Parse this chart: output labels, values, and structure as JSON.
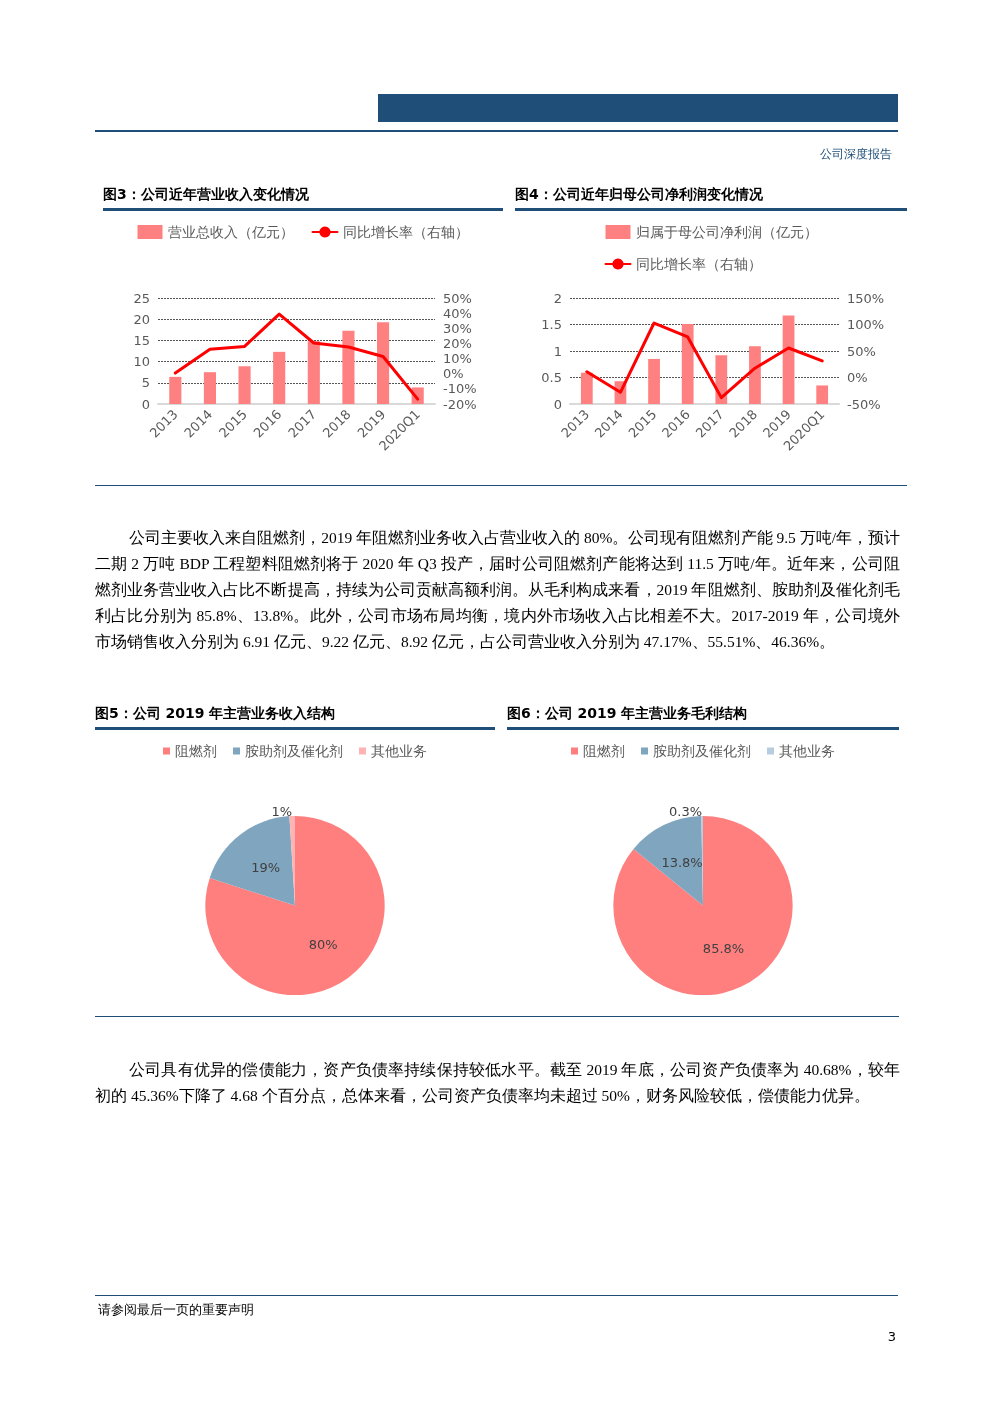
{
  "chart_data": [
    {
      "type": "bar",
      "title": "图3：公司近年营业收入变化情况",
      "categories": [
        "2013",
        "2014",
        "2015",
        "2016",
        "2017",
        "2018",
        "2019",
        "2020Q1"
      ],
      "series": [
        {
          "name": "营业总收入（亿元）",
          "color": "#ff8080",
          "values": [
            6.4,
            7.5,
            8.9,
            12.3,
            14.8,
            17.3,
            19.3,
            3.9
          ]
        },
        {
          "name": "同比增长率（右轴）",
          "type": "line",
          "axis": "y2",
          "color": "#ff0000",
          "values": [
            0.4,
            16.1,
            18,
            39.4,
            20.3,
            17.6,
            11.4,
            -16.8
          ]
        }
      ],
      "ylim": [
        0,
        25
      ],
      "yticks": [
        0,
        5,
        10,
        15,
        20,
        25
      ],
      "y2lim": [
        -20,
        50
      ],
      "y2ticks": [
        {
          "value": -20,
          "label": "-20%"
        },
        {
          "value": -10,
          "label": "-10%"
        },
        {
          "value": 0,
          "label": "0%"
        },
        {
          "value": 10,
          "label": "10%"
        },
        {
          "value": 20,
          "label": "20%"
        },
        {
          "value": 30,
          "label": "30%"
        },
        {
          "value": 40,
          "label": "40%"
        },
        {
          "value": 50,
          "label": "50%"
        }
      ],
      "grid": "y",
      "legend": "top",
      "marker": "none",
      "line_style": "solid",
      "annotations": [
        "公司深度报告"
      ]
    },
    {
      "type": "bar",
      "title": "图4：公司近年归母公司净利润变化情况",
      "categories": [
        "2013",
        "2014",
        "2015",
        "2016",
        "2017",
        "2018",
        "2019",
        "2020Q1"
      ],
      "series": [
        {
          "name": "归属于母公司净利润（亿元）",
          "color": "#ff8080",
          "values": [
            0.59,
            0.43,
            0.85,
            1.51,
            0.92,
            1.09,
            1.67,
            0.35
          ]
        },
        {
          "name": "同比增长率（右轴）",
          "type": "line",
          "axis": "y2",
          "color": "#ff0000",
          "values": [
            10.9,
            -28,
            102.8,
            76.6,
            -38,
            17.5,
            55.7,
            31.2
          ]
        }
      ],
      "ylim": [
        0,
        2
      ],
      "yticks": [
        0,
        0.5,
        1,
        1.5,
        2
      ],
      "y2lim": [
        -50,
        150
      ],
      "y2ticks": [
        {
          "value": -50,
          "label": "-50%"
        },
        {
          "value": 0,
          "label": "0%"
        },
        {
          "value": 50,
          "label": "50%"
        },
        {
          "value": 100,
          "label": "100%"
        },
        {
          "value": 150,
          "label": "150%"
        }
      ],
      "grid": "y",
      "legend": "top",
      "marker": "none",
      "line_style": "solid",
      "annotations": [
        "公司主要收入来自阻燃剂，2019 年阻燃剂业务收入占营业收入的 80%。公司现有阻燃剂产能 9.5 万吨/年，预计二期 2 万吨 BDP 工程塑料阻燃剂将于 2020 年 Q3 投产，届时公司阻燃剂产能将达到 11.5 万吨/年。近年来，公司阻燃剂业务营业收入占比不断提高，持续为公司贡献高额利润。从毛利构成来看，2019 年阻燃剂、胺助剂及催化剂毛利占比分别为 85.8%、13.8%。此外，公司市场布局均衡，境内外市场收入占比相差不大。2017-2019 年，公司境外市场销售收入分别为 6.91 亿元、9.22 亿元、8.92 亿元，占公司营业收入分别为 47.17%、55.51%、46.36%。"
      ]
    },
    {
      "type": "pie",
      "title": "图5：公司 2019 年主营业务收入结构",
      "categories": [
        "阻燃剂",
        "胺助剂及催化剂",
        "其他业务"
      ],
      "values": [
        80,
        19,
        1
      ],
      "colors": [
        "#ff7f7f",
        "#7fa5bf",
        "#ffb3b3"
      ],
      "value_labels": [
        "80%",
        "19%",
        "1%"
      ],
      "legend": "top"
    },
    {
      "type": "pie",
      "title": "图6：公司 2019 年主营业务毛利结构",
      "categories": [
        "阻燃剂",
        "胺助剂及催化剂",
        "其他业务"
      ],
      "values": [
        85.8,
        13.8,
        0.3
      ],
      "colors": [
        "#ff7f7f",
        "#7fa5bf",
        "#b8cce0"
      ],
      "value_labels": [
        "85.8%",
        "13.8%",
        "0.3%"
      ],
      "legend": "top",
      "annotations": [
        "公司具有优异的偿债能力，资产负债率持续保持较低水平。截至 2019 年底，公司资产负债率为 40.68%，较年初的 45.36%下降了 4.68 个百分点，总体来看，公司资产负债率均未超过 50%，财务风险较低，偿债能力优异。",
        "请参阅最后一页的重要声明",
        "3"
      ]
    }
  ]
}
